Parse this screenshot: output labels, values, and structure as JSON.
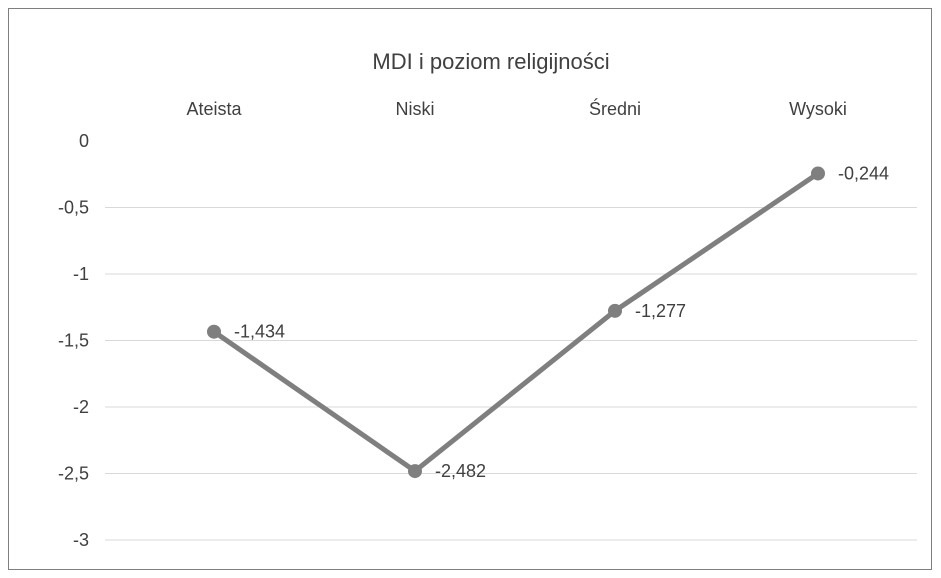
{
  "chart_data": {
    "type": "line",
    "title": "MDI i poziom religijności",
    "categories": [
      "Ateista",
      "Niski",
      "Średni",
      "Wysoki"
    ],
    "series": [
      {
        "values": [
          -1.434,
          -2.482,
          -1.277,
          -0.244
        ],
        "labels": [
          "-1,434",
          "-2,482",
          "-1,277",
          "-0,244"
        ],
        "color": "#7f7f7f"
      }
    ],
    "ylim": [
      -3,
      0
    ],
    "yticks": [
      0,
      -0.5,
      -1,
      -1.5,
      -2,
      -2.5,
      -3
    ],
    "ytick_labels": [
      "0",
      "-0,5",
      "-1",
      "-1,5",
      "-2",
      "-2,5",
      "-3"
    ],
    "category_axis_position": "top",
    "grid": true,
    "legend": "none",
    "gridline_color": "#d9d9d9",
    "text_color": "#404040"
  }
}
